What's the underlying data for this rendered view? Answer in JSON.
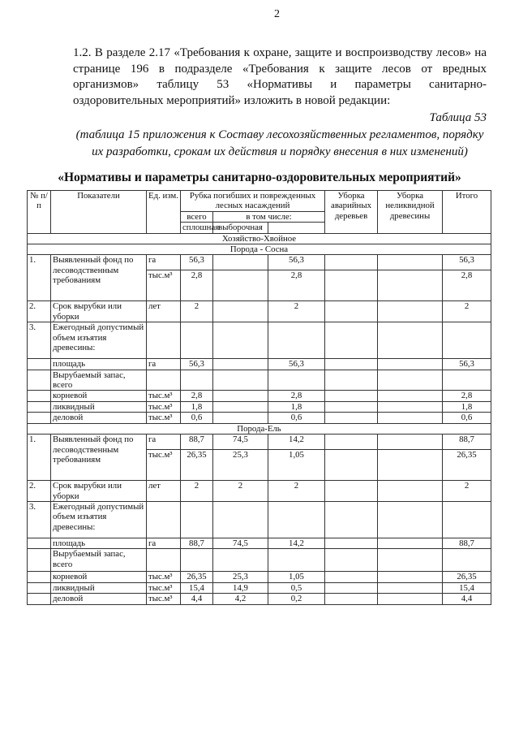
{
  "page_number": "2",
  "paragraph": "1.2. В разделе 2.17 «Требования к охране, защите и воспроизводству лесов» на странице 196 в подразделе «Требования к защите лесов от вредных организмов» таблицу 53 «Нормативы и параметры санитарно-оздоровительных мероприятий» изложить в новой редакции:",
  "table_label": "Таблица 53",
  "table_note": "(таблица 15 приложения к Составу лесохозяйственных регламентов, порядку их разработки, срокам их действия и порядку внесения в них изменений)",
  "table_title": "«Нормативы и параметры санитарно-оздоровительных мероприятий»",
  "headers": {
    "num": "№ п/п",
    "indicator": "Показатели",
    "unit": "Ед. изм.",
    "felling": "Рубка погибших и поврежденных лесных насаждений",
    "total": "всего",
    "including": "в том числе:",
    "clear": "сплошная",
    "selective": "выборочная",
    "emergency": "Уборка аварийных деревьев",
    "illiquid": "Уборка неликвидной древесины",
    "sum": "Итого"
  },
  "farm": "Хозяйство-Хвойное",
  "sections": [
    {
      "title": "Порода - Сосна",
      "rows": [
        {
          "num": "1.",
          "indicator": "Выявленный фонд по лесоводственным требованиям",
          "measures": [
            {
              "unit": "га",
              "values": [
                "56,3",
                "",
                "56,3",
                "",
                "",
                "56,3"
              ]
            },
            {
              "unit": "тыс.м³",
              "values": [
                "2,8",
                "",
                "2,8",
                "",
                "",
                "2,8"
              ]
            }
          ]
        },
        {
          "num": "2.",
          "indicator": "Срок вырубки или уборки",
          "measures": [
            {
              "unit": "лет",
              "values": [
                "2",
                "",
                "2",
                "",
                "",
                "2"
              ]
            }
          ]
        },
        {
          "num": "3.",
          "indicator": "Ежегодный допустимый объем изъятия древесины:",
          "measures": [
            {
              "unit": "",
              "values": [
                "",
                "",
                "",
                "",
                "",
                ""
              ]
            }
          ]
        },
        {
          "num": "",
          "indicator": "площадь",
          "measures": [
            {
              "unit": "га",
              "values": [
                "56,3",
                "",
                "56,3",
                "",
                "",
                "56,3"
              ]
            }
          ]
        },
        {
          "num": "",
          "indicator": "Вырубаемый запас, всего",
          "measures": [
            {
              "unit": "",
              "values": [
                "",
                "",
                "",
                "",
                "",
                ""
              ]
            }
          ]
        },
        {
          "num": "",
          "indicator": "корневой",
          "measures": [
            {
              "unit": "тыс.м³",
              "values": [
                "2,8",
                "",
                "2,8",
                "",
                "",
                "2,8"
              ]
            }
          ]
        },
        {
          "num": "",
          "indicator": "ликвидный",
          "measures": [
            {
              "unit": "тыс.м³",
              "values": [
                "1,8",
                "",
                "1,8",
                "",
                "",
                "1,8"
              ]
            }
          ]
        },
        {
          "num": "",
          "indicator": "деловой",
          "measures": [
            {
              "unit": "тыс.м³",
              "values": [
                "0,6",
                "",
                "0,6",
                "",
                "",
                "0,6"
              ]
            }
          ]
        }
      ]
    },
    {
      "title": "Порода-Ель",
      "rows": [
        {
          "num": "1.",
          "indicator": "Выявленный фонд по лесоводственным требованиям",
          "measures": [
            {
              "unit": "га",
              "values": [
                "88,7",
                "74,5",
                "14,2",
                "",
                "",
                "88,7"
              ]
            },
            {
              "unit": "тыс.м³",
              "values": [
                "26,35",
                "25,3",
                "1,05",
                "",
                "",
                "26,35"
              ]
            }
          ]
        },
        {
          "num": "2.",
          "indicator": "Срок вырубки или уборки",
          "measures": [
            {
              "unit": "лет",
              "values": [
                "2",
                "2",
                "2",
                "",
                "",
                "2"
              ]
            }
          ]
        },
        {
          "num": "3.",
          "indicator": "Ежегодный допустимый объем изъятия древесины:",
          "measures": [
            {
              "unit": "",
              "values": [
                "",
                "",
                "",
                "",
                "",
                ""
              ]
            }
          ]
        },
        {
          "num": "",
          "indicator": "площадь",
          "measures": [
            {
              "unit": "га",
              "values": [
                "88,7",
                "74,5",
                "14,2",
                "",
                "",
                "88,7"
              ]
            }
          ]
        },
        {
          "num": "",
          "indicator": "Вырубаемый запас, всего",
          "measures": [
            {
              "unit": "",
              "values": [
                "",
                "",
                "",
                "",
                "",
                ""
              ]
            }
          ]
        },
        {
          "num": "",
          "indicator": "корневой",
          "measures": [
            {
              "unit": "тыс.м³",
              "values": [
                "26,35",
                "25,3",
                "1,05",
                "",
                "",
                "26,35"
              ]
            }
          ]
        },
        {
          "num": "",
          "indicator": "ликвидный",
          "measures": [
            {
              "unit": "тыс.м³",
              "values": [
                "15,4",
                "14,9",
                "0,5",
                "",
                "",
                "15,4"
              ]
            }
          ]
        },
        {
          "num": "",
          "indicator": "деловой",
          "measures": [
            {
              "unit": "тыс.м³",
              "values": [
                "4,4",
                "4,2",
                "0,2",
                "",
                "",
                "4,4"
              ]
            }
          ]
        }
      ]
    }
  ]
}
